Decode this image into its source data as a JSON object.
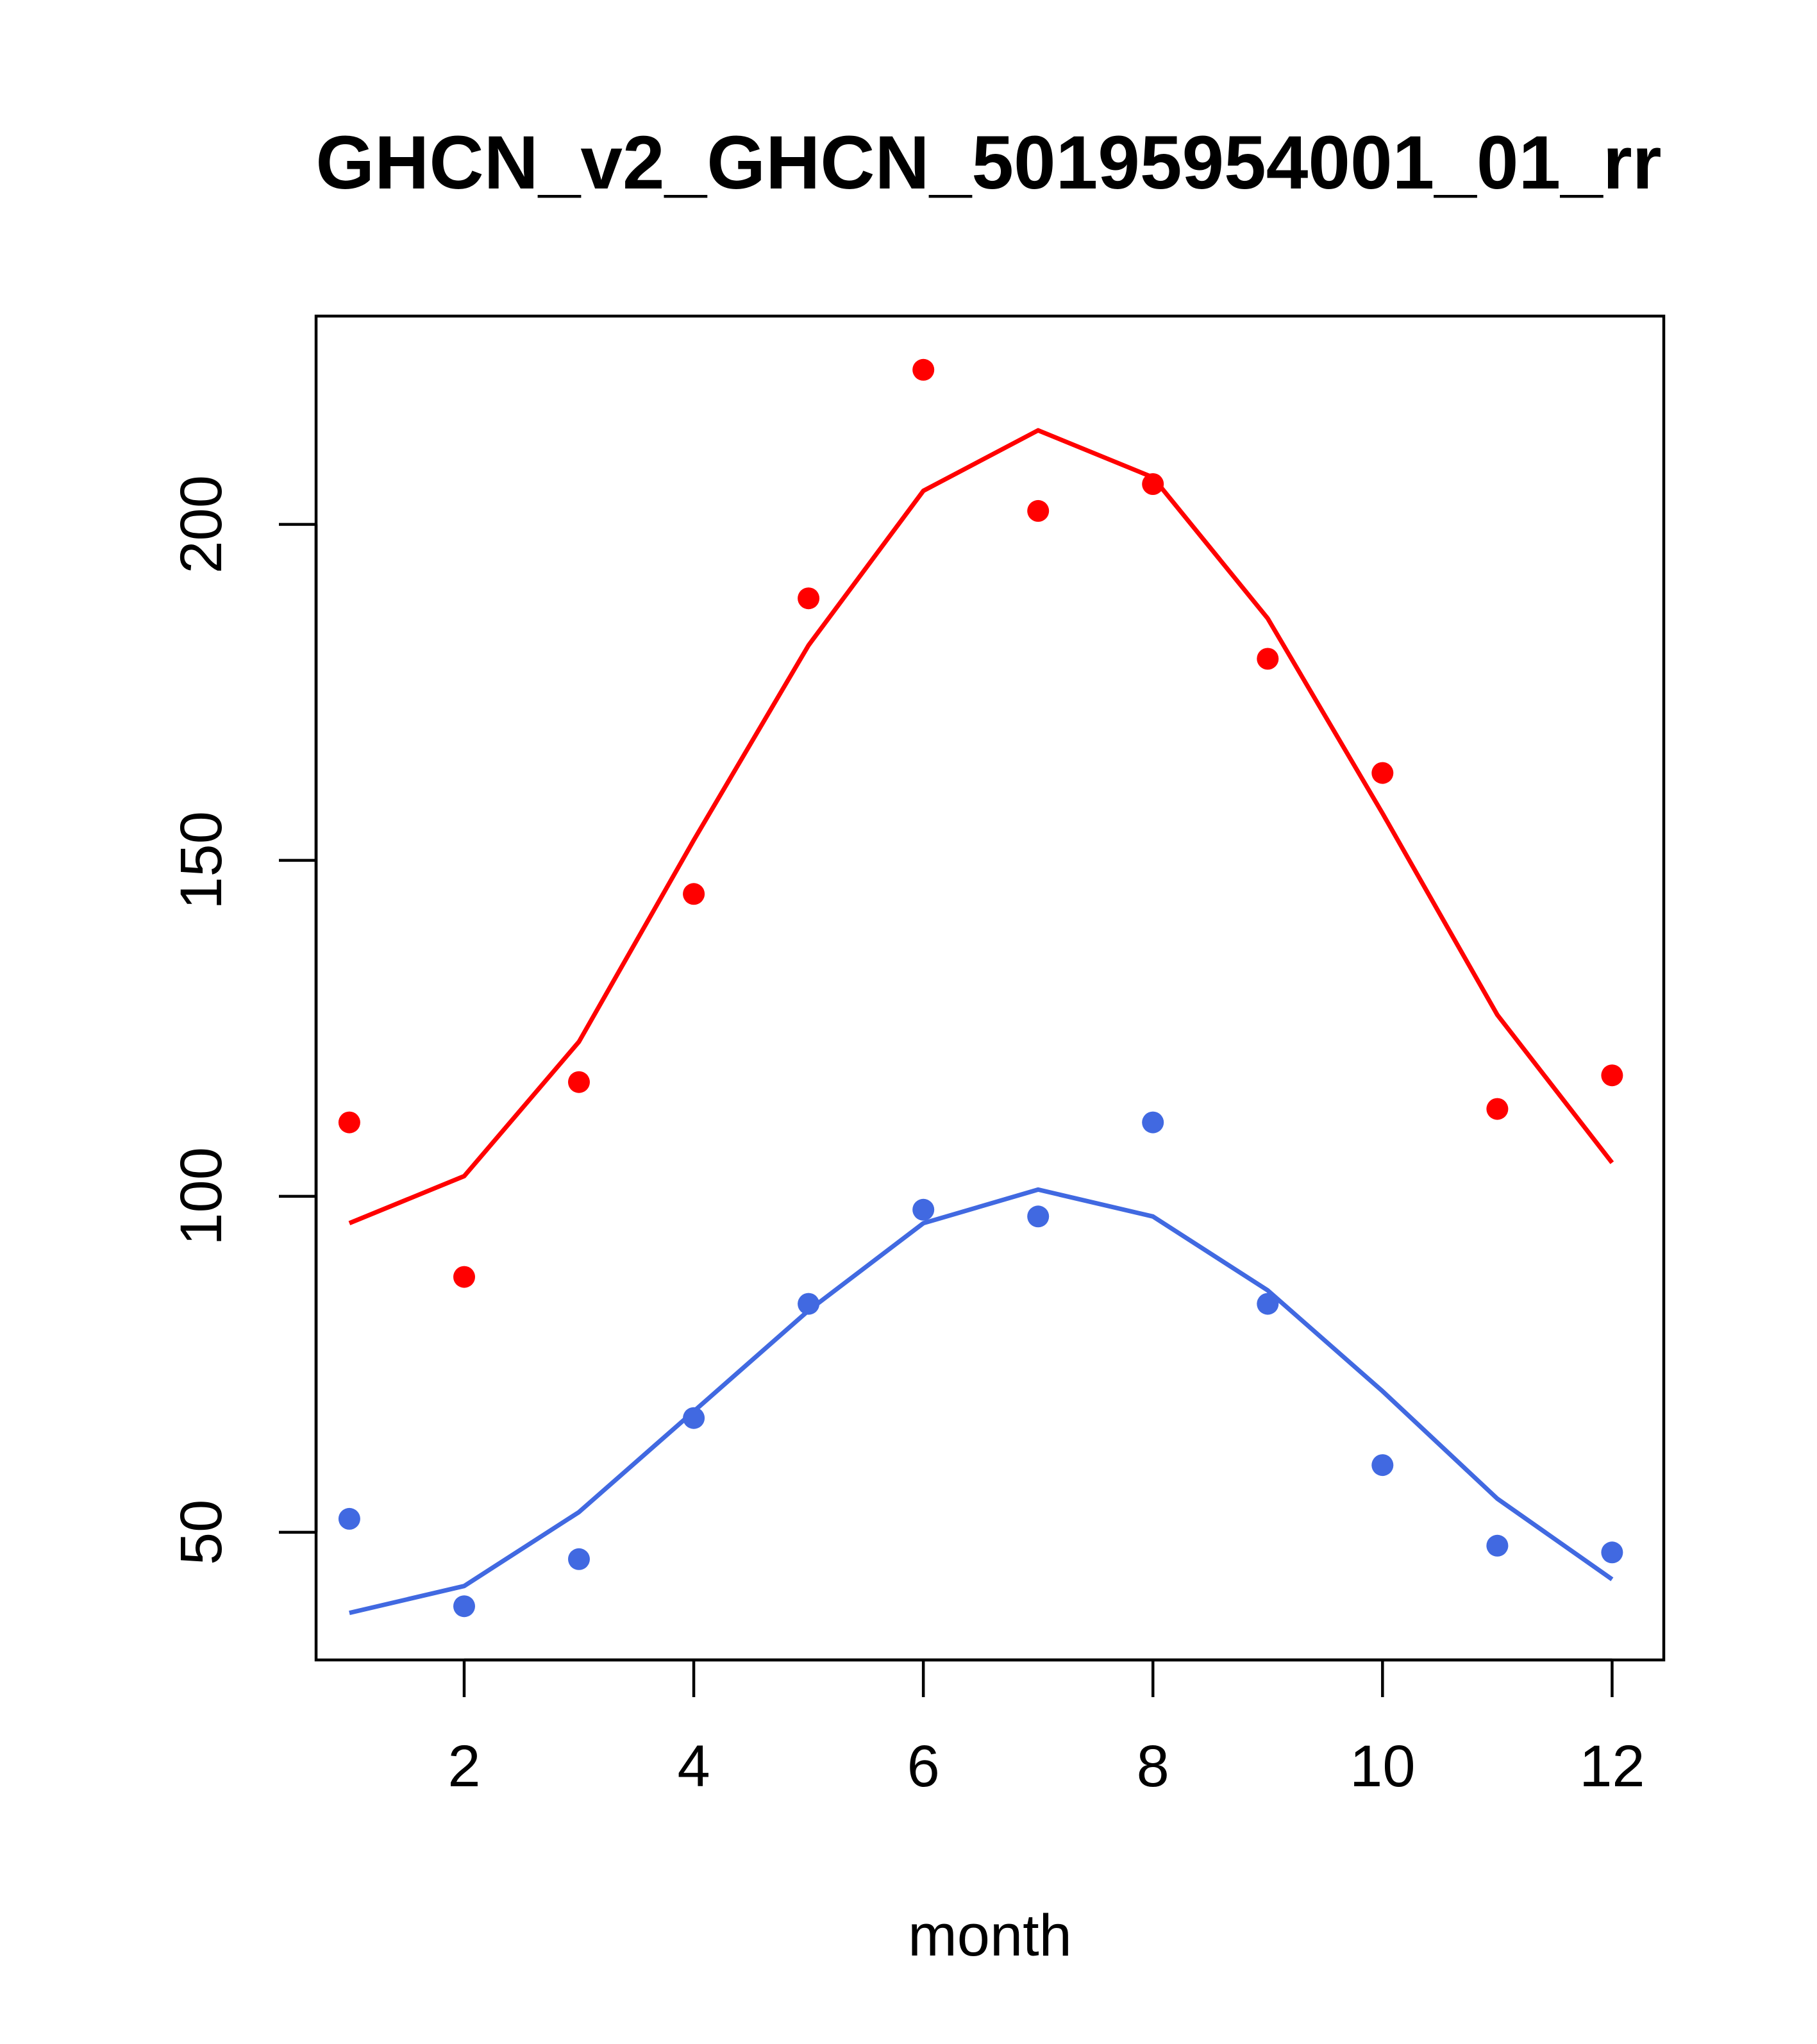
{
  "chart_data": {
    "type": "line",
    "title": "GHCN_v2_GHCN_50195954001_01_rr",
    "xlabel": "month",
    "ylabel": "",
    "xlim": [
      0.71,
      12.45
    ],
    "ylim": [
      31,
      231
    ],
    "x_ticks": [
      2,
      4,
      6,
      8,
      10,
      12
    ],
    "y_ticks": [
      50,
      100,
      150,
      200
    ],
    "grid": false,
    "legend": null,
    "series": [
      {
        "color": "#FF0000",
        "x": [
          1,
          2,
          3,
          4,
          5,
          6,
          7,
          8,
          9,
          10,
          11,
          12
        ],
        "points": [
          111,
          88,
          117,
          145,
          189,
          223,
          202,
          206,
          180,
          163,
          113,
          118
        ],
        "line": [
          96,
          103,
          123,
          153,
          182,
          205,
          214,
          207,
          186,
          157,
          127,
          105
        ]
      },
      {
        "color": "#4169E1",
        "x": [
          1,
          2,
          3,
          4,
          5,
          6,
          7,
          8,
          9,
          10,
          11,
          12
        ],
        "points": [
          52,
          39,
          46,
          67,
          84,
          98,
          97,
          111,
          84,
          60,
          48,
          47
        ],
        "line": [
          38,
          42,
          53,
          68,
          83,
          96,
          101,
          97,
          86,
          71,
          55,
          43
        ]
      }
    ]
  }
}
